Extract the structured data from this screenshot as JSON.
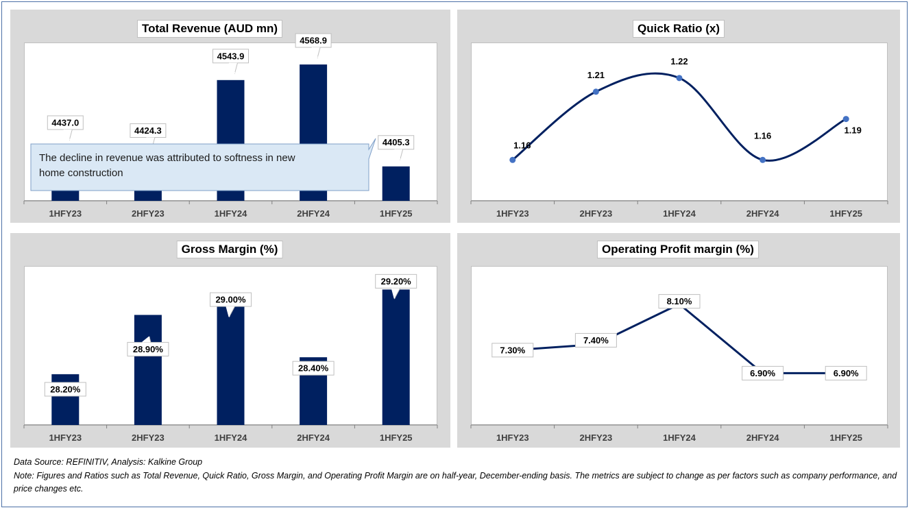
{
  "footer": {
    "source": "Data Source: REFINITIV, Analysis: Kalkine Group",
    "note": "Note: Figures and Ratios such as Total Revenue, Quick Ratio, Gross Margin, and Operating Profit Margin are on half-year, December-ending basis. The metrics are subject to change as per factors such as company performance, and price changes etc."
  },
  "colors": {
    "bar": "#002060",
    "line": "#002060",
    "marker": "#4472c4",
    "callout_fill": "#dae8f5",
    "callout_border": "#7f9fc7"
  },
  "chart_data": [
    {
      "id": "revenue",
      "type": "bar",
      "title": "Total Revenue (AUD mn)",
      "categories": [
        "1HFY23",
        "2HFY23",
        "1HFY24",
        "2HFY24",
        "1HFY25"
      ],
      "values": [
        4437.0,
        4424.3,
        4543.9,
        4568.9,
        4405.3
      ],
      "labels": [
        "4437.0",
        "4424.3",
        "4543.9",
        "4568.9",
        "4405.3"
      ],
      "ylim": [
        4350,
        4580
      ],
      "annotation": "The decline in revenue was attributed to softness in new home construction"
    },
    {
      "id": "quick",
      "type": "line",
      "smooth": true,
      "markers": true,
      "title": "Quick Ratio (x)",
      "categories": [
        "1HFY23",
        "2HFY23",
        "1HFY24",
        "2HFY24",
        "1HFY25"
      ],
      "values": [
        1.16,
        1.21,
        1.22,
        1.16,
        1.19
      ],
      "labels": [
        "1.16",
        "1.21",
        "1.22",
        "1.16",
        "1.19"
      ],
      "ylim": [
        1.13,
        1.235
      ]
    },
    {
      "id": "gross",
      "type": "bar",
      "title": "Gross Margin (%)",
      "categories": [
        "1HFY23",
        "2HFY23",
        "1HFY24",
        "2HFY24",
        "1HFY25"
      ],
      "values": [
        28.2,
        28.9,
        29.0,
        28.4,
        29.2
      ],
      "labels": [
        "28.20%",
        "28.90%",
        "29.00%",
        "28.40%",
        "29.20%"
      ],
      "ylim": [
        27.6,
        29.3
      ]
    },
    {
      "id": "opm",
      "type": "line",
      "smooth": false,
      "markers": false,
      "title": "Operating Profit margin (%)",
      "categories": [
        "1HFY23",
        "2HFY23",
        "1HFY24",
        "2HFY24",
        "1HFY25"
      ],
      "values": [
        7.3,
        7.4,
        8.1,
        6.9,
        6.9
      ],
      "labels": [
        "7.30%",
        "7.40%",
        "8.10%",
        "6.90%",
        "6.90%"
      ],
      "ylim": [
        6.0,
        8.5
      ]
    }
  ]
}
